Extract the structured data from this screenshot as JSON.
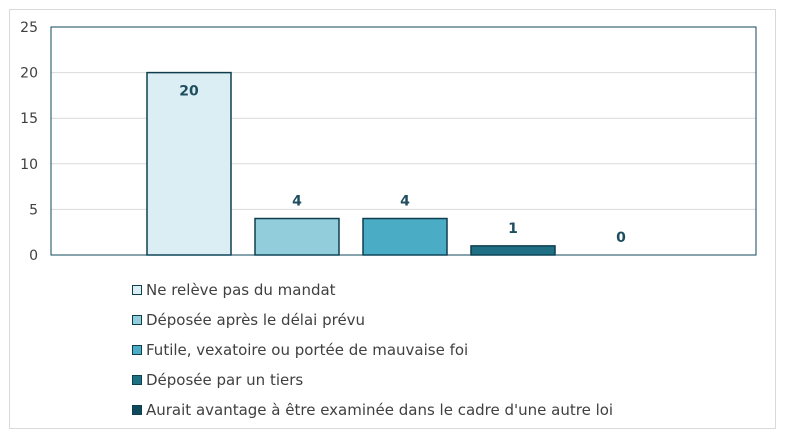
{
  "chart_data": {
    "type": "bar",
    "categories": [
      "Ne relève pas du mandat",
      "Déposée après le délai prévu",
      "Futile, vexatoire ou portée de mauvaise foi",
      "Déposée par un tiers",
      "Aurait avantage à être examinée dans le cadre d'une autre loi"
    ],
    "values": [
      20,
      4,
      4,
      1,
      0
    ],
    "colors": [
      "#dbeef4",
      "#92cddc",
      "#4bacc6",
      "#1f6f85",
      "#0f4a5c"
    ],
    "ylim": [
      0,
      25
    ],
    "yticks": [
      "0",
      "5",
      "10",
      "15",
      "20",
      "25"
    ],
    "grid": true,
    "legend_position": "bottom",
    "title": "",
    "xlabel": "",
    "ylabel": ""
  }
}
